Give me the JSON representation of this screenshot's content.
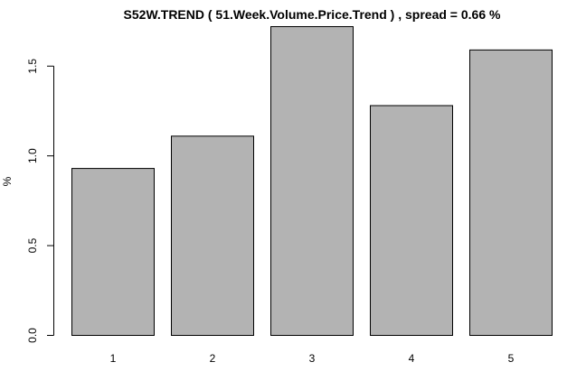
{
  "chart_data": {
    "type": "bar",
    "title": "S52W.TREND ( 51.Week.Volume.Price.Trend ) , spread = 0.66 %",
    "xlabel": "",
    "ylabel": "%",
    "categories": [
      "1",
      "2",
      "3",
      "4",
      "5"
    ],
    "values": [
      0.93,
      1.11,
      1.72,
      1.28,
      1.59
    ],
    "ylim": [
      0,
      1.72
    ],
    "yticks": [
      0.0,
      0.5,
      1.0,
      1.5
    ],
    "ytick_labels": [
      "0.0",
      "0.5",
      "1.0",
      "1.5"
    ],
    "bar_color": "#b3b3b3",
    "border_color": "#000000",
    "grid": false,
    "legend": "none"
  }
}
